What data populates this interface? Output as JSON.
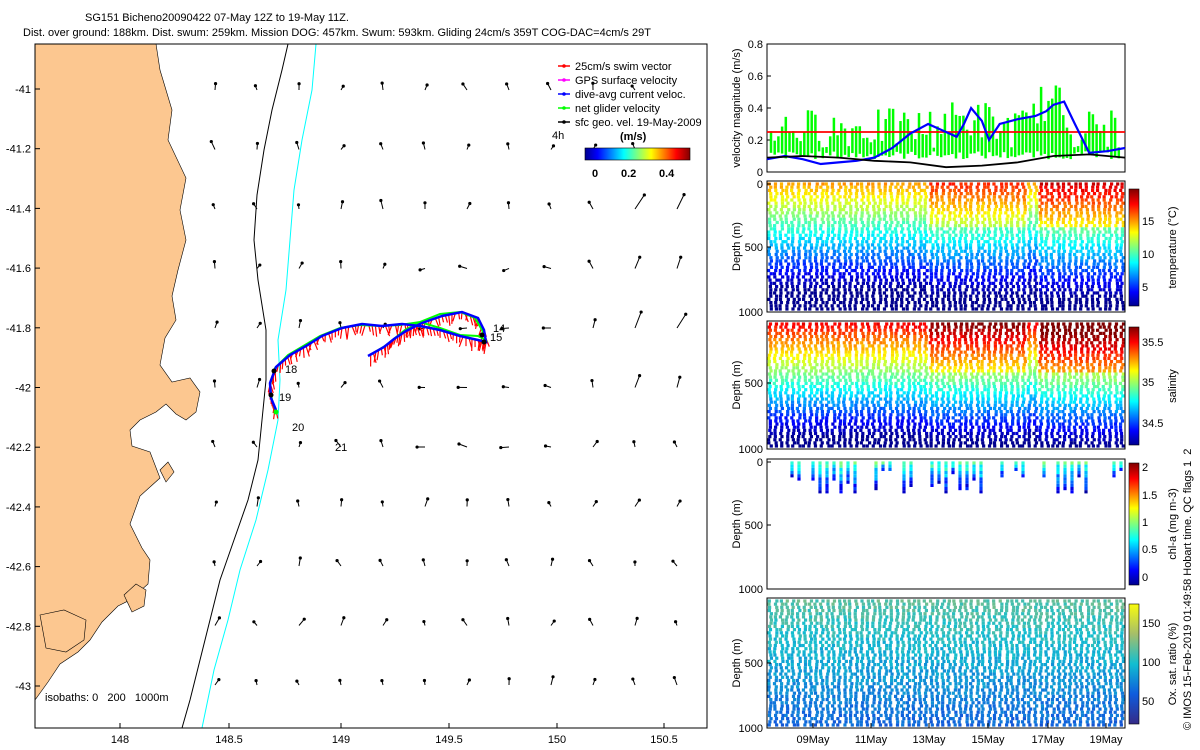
{
  "header": {
    "title_line1": "SG151 Bicheno20090422 07-May 12Z to 19-May 11Z.",
    "title_line2": "Dist. over ground: 188km. Dist. swum: 259km. Mission DOG: 457km. Swum: 593km. Gliding 24cm/s 359T COG-DAC=4cm/s 29T"
  },
  "map": {
    "xticks": [
      "148",
      "148.5",
      "149",
      "149.5",
      "150",
      "150.5"
    ],
    "yticks": [
      "-41",
      "-41.2",
      "-41.4",
      "-41.6",
      "-41.8",
      "-42",
      "-42.2",
      "-42.4",
      "-42.6",
      "-42.8",
      "-43"
    ],
    "legend": {
      "items": [
        {
          "label": "25cm/s swim vector",
          "color": "#ff0000"
        },
        {
          "label": "GPS surface velocity",
          "color": "#ff00ff"
        },
        {
          "label": "dive-avg current veloc.",
          "color": "#0000ff"
        },
        {
          "label": "net glider velocity",
          "color": "#00ff00"
        },
        {
          "label": "sfc geo. vel. 19-May-2009",
          "color": "#000000"
        }
      ],
      "label_4h": "4h",
      "colorbar_unit": "(m/s)",
      "colorbar_ticks": [
        "0",
        "0.2",
        "0.4"
      ]
    },
    "day_labels": [
      "14",
      "15",
      "18",
      "19",
      "20",
      "21"
    ],
    "isobaths_label": "isobaths: 0   200   1000m"
  },
  "chart_data": [
    {
      "type": "line",
      "title": "",
      "ylabel": "velocity magnitude (m/s)",
      "ylim": [
        0,
        0.8
      ],
      "yticks": [
        "0",
        "0.2",
        "0.4",
        "0.6",
        "0.8"
      ],
      "series": [
        {
          "name": "25cm/s reference",
          "color": "#ff0000",
          "x": [
            0,
            1
          ],
          "y": [
            0.25,
            0.25
          ]
        },
        {
          "name": "dive-avg current veloc.",
          "color": "#0000ff",
          "x": [
            0,
            0.05,
            0.1,
            0.15,
            0.2,
            0.25,
            0.3,
            0.35,
            0.4,
            0.45,
            0.5,
            0.53,
            0.55,
            0.57,
            0.6,
            0.62,
            0.65,
            0.7,
            0.75,
            0.78,
            0.8,
            0.83,
            0.86,
            0.9,
            0.95,
            1
          ],
          "y": [
            0.08,
            0.1,
            0.08,
            0.05,
            0.06,
            0.07,
            0.09,
            0.15,
            0.24,
            0.3,
            0.25,
            0.22,
            0.3,
            0.4,
            0.32,
            0.2,
            0.3,
            0.33,
            0.35,
            0.38,
            0.42,
            0.44,
            0.3,
            0.12,
            0.13,
            0.15
          ]
        },
        {
          "name": "sfc geo. vel.",
          "color": "#000000",
          "x": [
            0,
            0.1,
            0.2,
            0.3,
            0.4,
            0.5,
            0.6,
            0.7,
            0.8,
            0.9,
            1
          ],
          "y": [
            0.09,
            0.1,
            0.09,
            0.07,
            0.06,
            0.03,
            0.04,
            0.06,
            0.1,
            0.11,
            0.09
          ]
        }
      ]
    },
    {
      "type": "heatmap",
      "ylabel": "Depth (m)",
      "yticks": [
        "0",
        "500",
        "1000"
      ],
      "colorbar_label": "temperature (°C)",
      "colorbar_ticks": [
        "5",
        "10",
        "15"
      ],
      "value_range": [
        4,
        19
      ]
    },
    {
      "type": "heatmap",
      "ylabel": "Depth (m)",
      "yticks": [
        "500",
        "1000"
      ],
      "colorbar_label": "salinity",
      "colorbar_ticks": [
        "34.5",
        "35",
        "35.5"
      ],
      "value_range": [
        34.3,
        35.7
      ]
    },
    {
      "type": "scatter",
      "ylabel": "Depth (m)",
      "yticks": [
        "0",
        "500",
        "1000"
      ],
      "colorbar_label": "chl-a (mg m-3)",
      "colorbar_ticks": [
        "0",
        "0.5",
        "1",
        "1.5",
        "2"
      ],
      "value_range": [
        0,
        2
      ]
    },
    {
      "type": "heatmap",
      "ylabel": "Depth (m)",
      "yticks": [
        "500",
        "1000"
      ],
      "colorbar_label": "Ox. sat. ratio (%)",
      "colorbar_ticks": [
        "50",
        "100",
        "150"
      ],
      "value_range": [
        20,
        170
      ],
      "xticks": [
        "09May",
        "11May",
        "13May",
        "15May",
        "17May",
        "19May"
      ]
    }
  ],
  "side_note": "© IMOS 15-Feb-2019 01:49:58 Hobart time. QC flags 1  2",
  "colors": {
    "land": "#fcc790",
    "coast_line": "#000000",
    "iso_200": "#00ffff",
    "iso_1000": "#000000"
  }
}
